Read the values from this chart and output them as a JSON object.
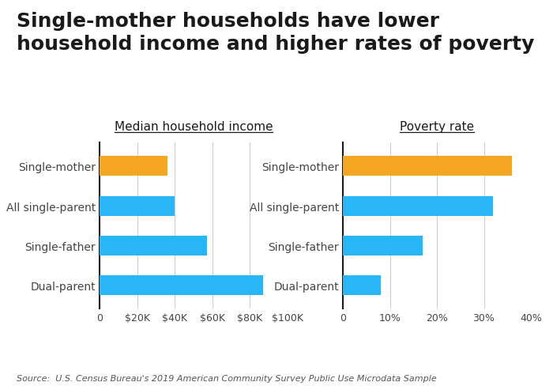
{
  "title_line1": "Single-mother households have lower",
  "title_line2": "household income and higher rates of poverty",
  "subtitle1": "Median household income",
  "subtitle2": "Poverty rate",
  "categories": [
    "Dual-parent",
    "Single-father",
    "All single-parent",
    "Single-mother"
  ],
  "income_values": [
    87000,
    57000,
    40000,
    36000
  ],
  "poverty_values": [
    0.08,
    0.17,
    0.32,
    0.36
  ],
  "income_colors": [
    "#29b6f6",
    "#29b6f6",
    "#29b6f6",
    "#f5a623"
  ],
  "poverty_colors": [
    "#29b6f6",
    "#29b6f6",
    "#29b6f6",
    "#f5a623"
  ],
  "income_xlim": [
    0,
    100000
  ],
  "poverty_xlim": [
    0,
    0.4
  ],
  "income_xticks": [
    0,
    20000,
    40000,
    60000,
    80000,
    100000
  ],
  "poverty_xticks": [
    0,
    0.1,
    0.2,
    0.3,
    0.4
  ],
  "source": "Source:  U.S. Census Bureau's 2019 American Community Survey Public Use Microdata Sample",
  "background_color": "#ffffff",
  "bar_height": 0.5,
  "title_fontsize": 18,
  "subtitle_fontsize": 11,
  "label_fontsize": 10,
  "tick_fontsize": 9,
  "source_fontsize": 8
}
